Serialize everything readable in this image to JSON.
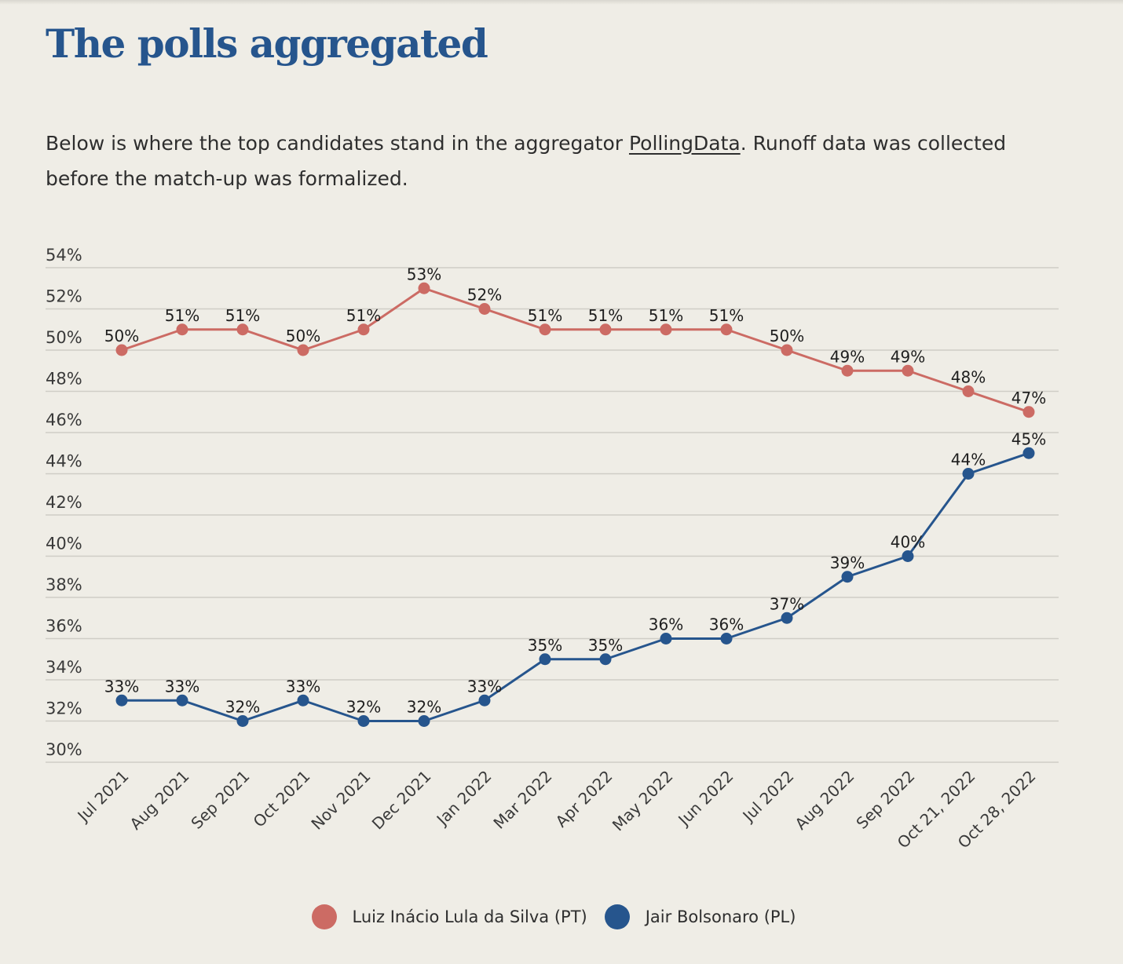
{
  "article": {
    "headline": "The polls aggregated",
    "intro_before": "Below is where the top candidates stand in the aggregator ",
    "intro_link": "PollingData",
    "intro_after": ". Runoff data was collected before the match-up was formalized."
  },
  "colors": {
    "lula": "#cc6b64",
    "bolsonaro": "#26558d",
    "grid": "#cfcdc6",
    "background": "#efede6"
  },
  "chart_data": {
    "type": "line",
    "title": "",
    "xlabel": "",
    "ylabel": "",
    "ylim": [
      30,
      54
    ],
    "y_ticks": [
      "30%",
      "32%",
      "34%",
      "36%",
      "38%",
      "40%",
      "42%",
      "44%",
      "46%",
      "48%",
      "50%",
      "52%",
      "54%"
    ],
    "grid": true,
    "legend_position": "bottom-center",
    "categories": [
      "Jul 2021",
      "Aug 2021",
      "Sep 2021",
      "Oct 2021",
      "Nov 2021",
      "Dec 2021",
      "Jan 2022",
      "Mar 2022",
      "Apr 2022",
      "May 2022",
      "Jun 2022",
      "Jul 2022",
      "Aug 2022",
      "Sep 2022",
      "Oct 21, 2022",
      "Oct 28, 2022"
    ],
    "series": [
      {
        "name": "Luiz Inácio Lula da Silva (PT)",
        "color": "#cc6b64",
        "values": [
          50,
          51,
          51,
          50,
          51,
          53,
          52,
          51,
          51,
          51,
          51,
          50,
          49,
          49,
          48,
          47
        ]
      },
      {
        "name": "Jair Bolsonaro (PL)",
        "color": "#26558d",
        "values": [
          33,
          33,
          32,
          33,
          32,
          32,
          33,
          35,
          35,
          36,
          36,
          37,
          39,
          40,
          44,
          45
        ]
      }
    ]
  }
}
